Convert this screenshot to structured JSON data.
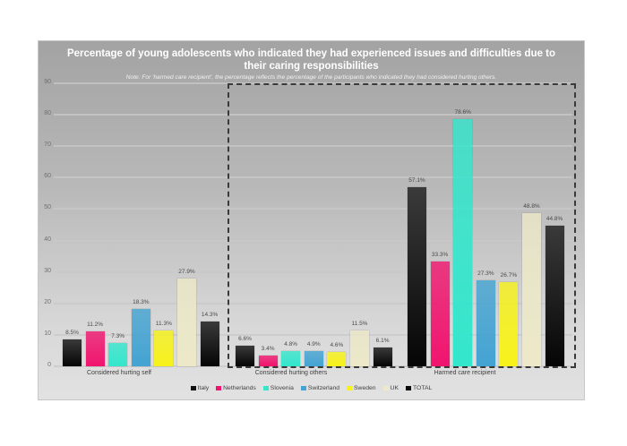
{
  "chart_data": {
    "type": "bar",
    "title": "Percentage of young adolescents who indicated they had experienced issues and difficulties due to their caring responsibilities",
    "title_lines": [
      "Percentage of young adolescents who indicated they had experienced issues and difficulties due to",
      "their caring responsibilities"
    ],
    "subtitle": "Note: For 'harmed care recipient', the percentage reflects the percentage of the participants who indicated they had considered hurting others.",
    "xlabel": "",
    "ylabel": "",
    "ylim": [
      0,
      90
    ],
    "yticks": [
      0,
      10,
      20,
      30,
      40,
      50,
      60,
      70,
      80,
      90
    ],
    "grid": true,
    "legend_position": "bottom",
    "categories": [
      "Considered hurting self",
      "Considered hurting others",
      "Harmed care recipient"
    ],
    "series": [
      {
        "name": "Italy",
        "color": "#111111",
        "values": [
          8.5,
          6.6,
          57.1
        ],
        "labels": [
          "8.5%",
          "6.6%",
          "57.1%"
        ]
      },
      {
        "name": "Netherlands",
        "color": "#f0146e",
        "values": [
          11.2,
          3.4,
          33.3
        ],
        "labels": [
          "11.2%",
          "3.4%",
          "33.3%"
        ]
      },
      {
        "name": "Slovenia",
        "color": "#33e6cc",
        "values": [
          7.3,
          4.8,
          78.6
        ],
        "labels": [
          "7.3%",
          "4.8%",
          "78.6%"
        ]
      },
      {
        "name": "Switzerland",
        "color": "#43a3d2",
        "values": [
          18.3,
          4.9,
          27.3
        ],
        "labels": [
          "18.3%",
          "4.9%",
          "27.3%"
        ]
      },
      {
        "name": "Sweden",
        "color": "#f7f21a",
        "values": [
          11.3,
          4.6,
          26.7
        ],
        "labels": [
          "11.3%",
          "4.6%",
          "26.7%"
        ]
      },
      {
        "name": "UK",
        "color": "#ece8c8",
        "values": [
          27.9,
          11.5,
          48.8
        ],
        "labels": [
          "27.9%",
          "11.5%",
          "48.8%"
        ]
      },
      {
        "name": "TOTAL",
        "color": "#0a0a0a",
        "values": [
          14.3,
          6.1,
          44.8
        ],
        "labels": [
          "14.3%",
          "6.1%",
          "44.8%"
        ]
      }
    ]
  }
}
